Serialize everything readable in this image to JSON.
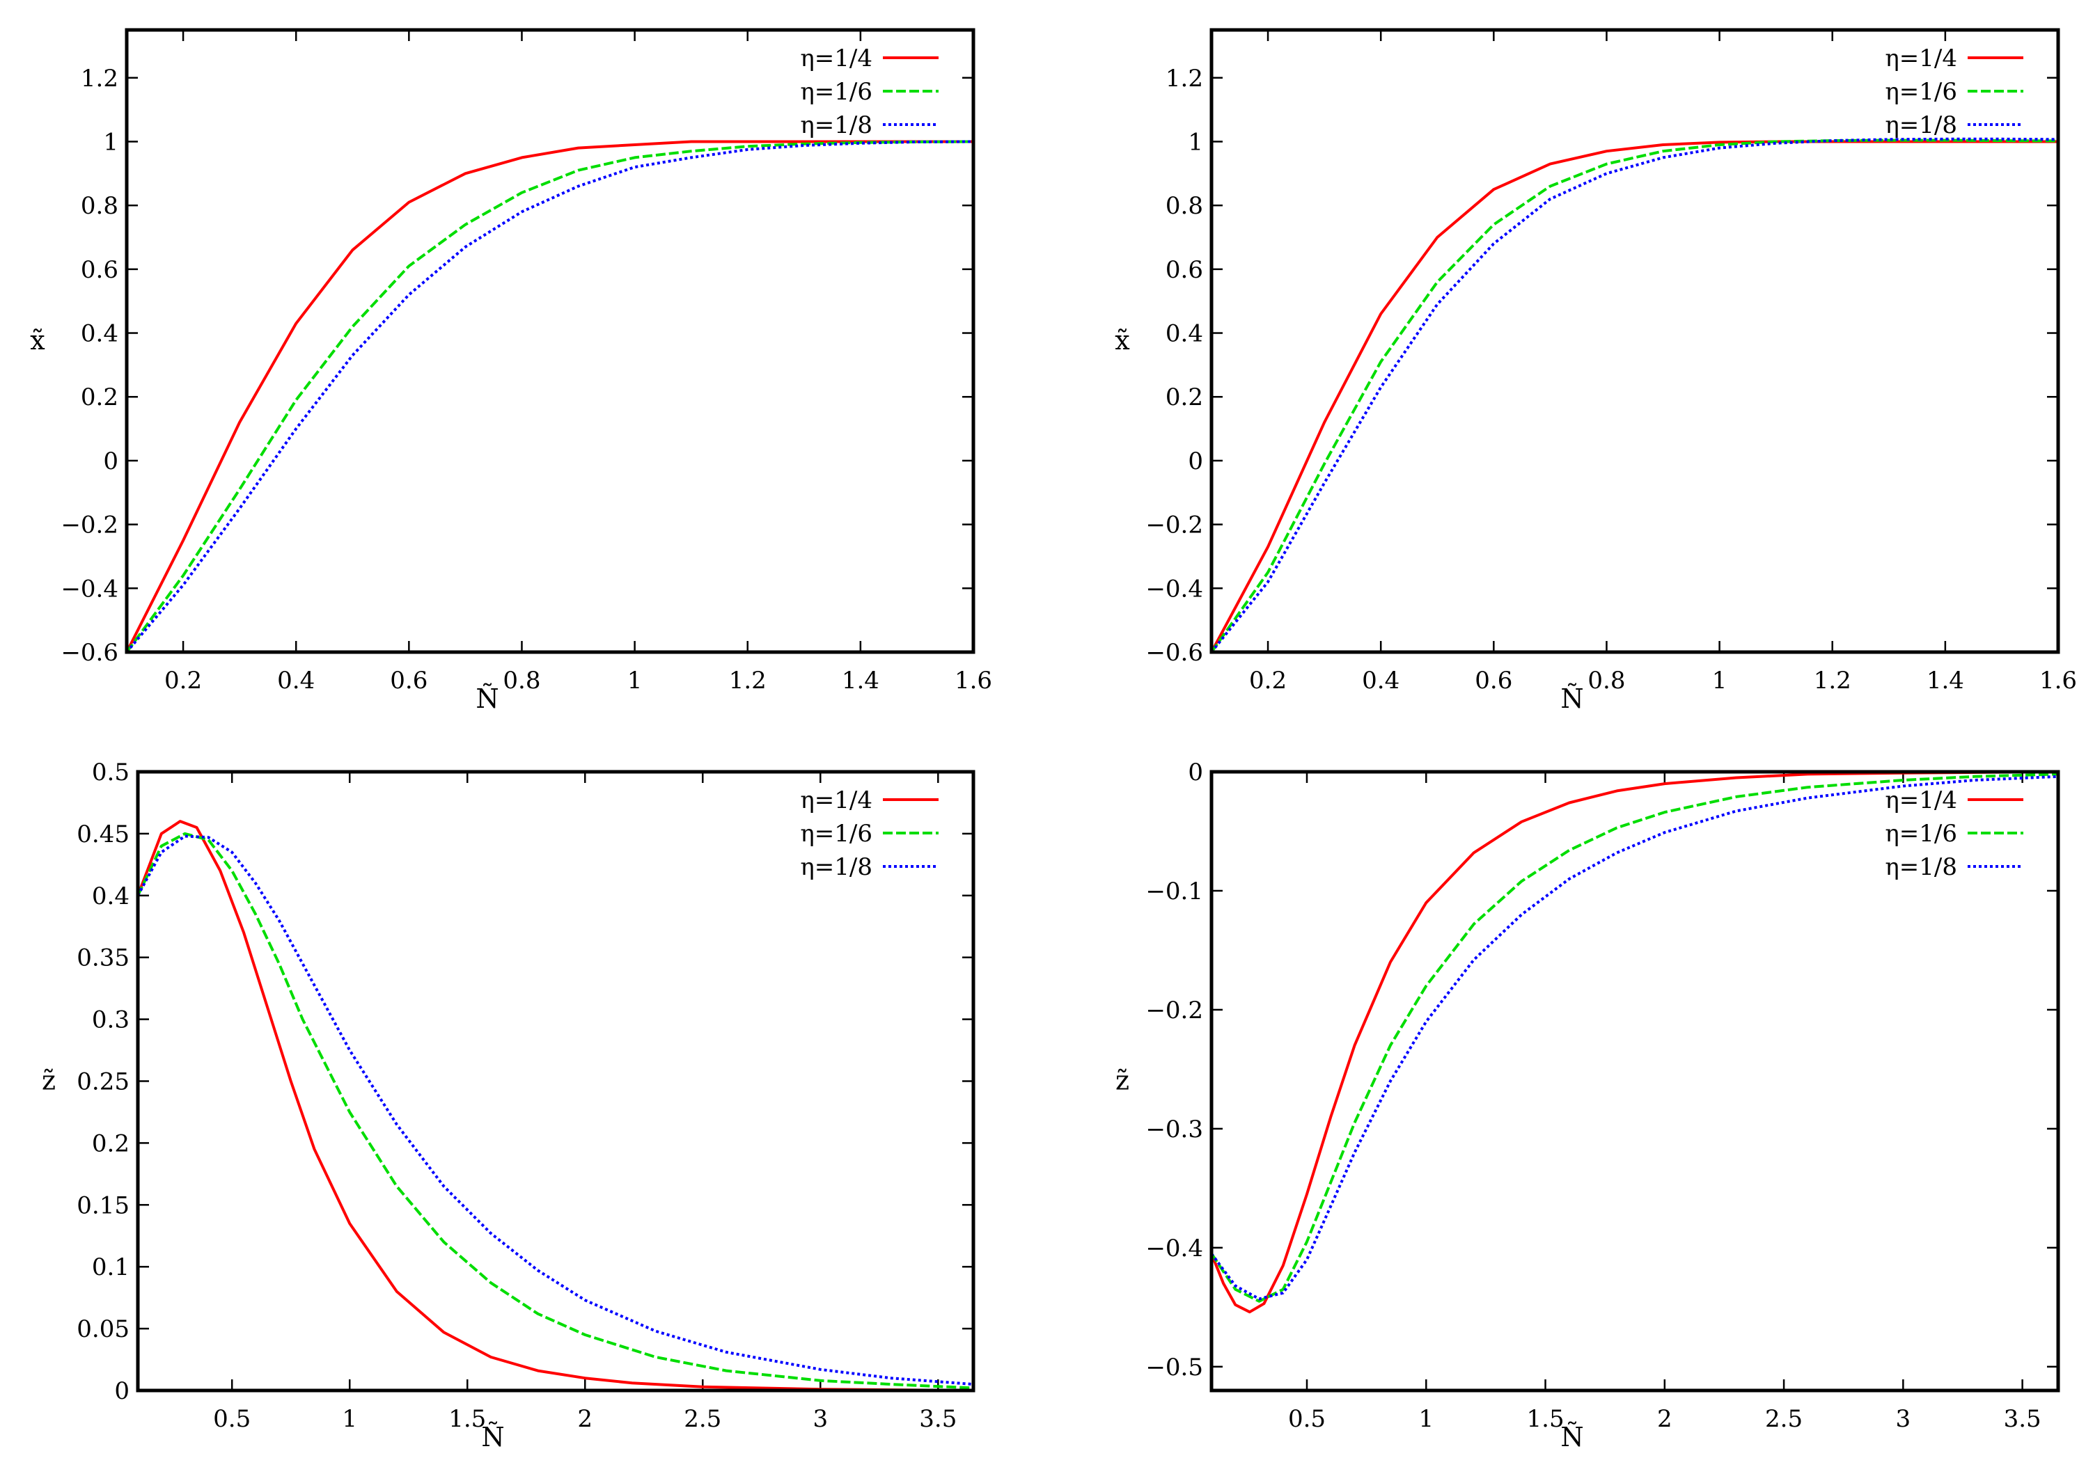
{
  "chart_data": [
    {
      "type": "line",
      "panel": "top-left",
      "xlabel": "Ñ",
      "ylabel": "x̃",
      "xlim": [
        0.1,
        1.6
      ],
      "ylim": [
        -0.6,
        1.35
      ],
      "xticks": [
        0.2,
        0.4,
        0.6,
        0.8,
        1,
        1.2,
        1.4,
        1.6
      ],
      "xtick_labels": [
        "0.2",
        "0.4",
        "0.6",
        "0.8",
        "1",
        "1.2",
        "1.4",
        "1.6"
      ],
      "yticks": [
        -0.6,
        -0.4,
        -0.2,
        0,
        0.2,
        0.4,
        0.6,
        0.8,
        1,
        1.2
      ],
      "ytick_labels": [
        "−0.6",
        "−0.4",
        "−0.2",
        "0",
        "0.2",
        "0.4",
        "0.6",
        "0.8",
        "1",
        "1.2"
      ],
      "legend_position": "top-right",
      "series": [
        {
          "name": "η=1/4",
          "color": "#ff0000",
          "style": "solid",
          "x": [
            0.1,
            0.2,
            0.3,
            0.4,
            0.5,
            0.6,
            0.7,
            0.8,
            0.9,
            1.0,
            1.1,
            1.2,
            1.3,
            1.4,
            1.5,
            1.6
          ],
          "y": [
            -0.6,
            -0.25,
            0.12,
            0.43,
            0.66,
            0.81,
            0.9,
            0.95,
            0.98,
            0.99,
            1.0,
            1.0,
            1.0,
            1.0,
            1.0,
            1.0
          ]
        },
        {
          "name": "η=1/6",
          "color": "#00dd00",
          "style": "dashed",
          "x": [
            0.1,
            0.2,
            0.3,
            0.4,
            0.5,
            0.6,
            0.7,
            0.8,
            0.9,
            1.0,
            1.1,
            1.2,
            1.3,
            1.4,
            1.5,
            1.6
          ],
          "y": [
            -0.6,
            -0.36,
            -0.09,
            0.19,
            0.42,
            0.61,
            0.74,
            0.84,
            0.91,
            0.95,
            0.97,
            0.985,
            0.993,
            0.997,
            0.999,
            1.0
          ]
        },
        {
          "name": "η=1/8",
          "color": "#0000ff",
          "style": "dotted",
          "x": [
            0.1,
            0.2,
            0.3,
            0.4,
            0.5,
            0.6,
            0.7,
            0.8,
            0.9,
            1.0,
            1.1,
            1.2,
            1.3,
            1.4,
            1.5,
            1.6
          ],
          "y": [
            -0.6,
            -0.39,
            -0.15,
            0.1,
            0.33,
            0.52,
            0.67,
            0.78,
            0.86,
            0.92,
            0.95,
            0.975,
            0.988,
            0.995,
            0.999,
            1.0
          ]
        }
      ]
    },
    {
      "type": "line",
      "panel": "top-right",
      "xlabel": "Ñ",
      "ylabel": "x̃",
      "xlim": [
        0.1,
        1.6
      ],
      "ylim": [
        -0.6,
        1.35
      ],
      "xticks": [
        0.2,
        0.4,
        0.6,
        0.8,
        1,
        1.2,
        1.4,
        1.6
      ],
      "xtick_labels": [
        "0.2",
        "0.4",
        "0.6",
        "0.8",
        "1",
        "1.2",
        "1.4",
        "1.6"
      ],
      "yticks": [
        -0.6,
        -0.4,
        -0.2,
        0,
        0.2,
        0.4,
        0.6,
        0.8,
        1,
        1.2
      ],
      "ytick_labels": [
        "−0.6",
        "−0.4",
        "−0.2",
        "0",
        "0.2",
        "0.4",
        "0.6",
        "0.8",
        "1",
        "1.2"
      ],
      "legend_position": "top-right",
      "series": [
        {
          "name": "η=1/4",
          "color": "#ff0000",
          "style": "solid",
          "x": [
            0.1,
            0.2,
            0.3,
            0.4,
            0.5,
            0.6,
            0.7,
            0.8,
            0.9,
            1.0,
            1.1,
            1.2,
            1.3,
            1.4,
            1.5,
            1.6
          ],
          "y": [
            -0.6,
            -0.27,
            0.12,
            0.46,
            0.7,
            0.85,
            0.93,
            0.97,
            0.99,
            0.998,
            1.0,
            1.0,
            1.0,
            1.0,
            1.0,
            1.0
          ]
        },
        {
          "name": "η=1/6",
          "color": "#00dd00",
          "style": "dashed",
          "x": [
            0.1,
            0.2,
            0.3,
            0.4,
            0.5,
            0.6,
            0.7,
            0.8,
            0.9,
            1.0,
            1.1,
            1.2,
            1.3,
            1.4,
            1.5,
            1.6
          ],
          "y": [
            -0.6,
            -0.35,
            -0.01,
            0.31,
            0.56,
            0.74,
            0.86,
            0.93,
            0.97,
            0.99,
            1.0,
            1.003,
            1.004,
            1.004,
            1.003,
            1.002
          ]
        },
        {
          "name": "η=1/8",
          "color": "#0000ff",
          "style": "dotted",
          "x": [
            0.1,
            0.2,
            0.3,
            0.4,
            0.5,
            0.6,
            0.7,
            0.8,
            0.9,
            1.0,
            1.1,
            1.2,
            1.3,
            1.4,
            1.5,
            1.6
          ],
          "y": [
            -0.6,
            -0.38,
            -0.07,
            0.23,
            0.49,
            0.68,
            0.82,
            0.9,
            0.95,
            0.98,
            0.995,
            1.003,
            1.007,
            1.008,
            1.008,
            1.007
          ]
        }
      ]
    },
    {
      "type": "line",
      "panel": "bottom-left",
      "xlabel": "Ñ",
      "ylabel": "z̃",
      "xlim": [
        0.1,
        3.65
      ],
      "ylim": [
        0,
        0.5
      ],
      "xticks": [
        0.5,
        1,
        1.5,
        2,
        2.5,
        3,
        3.5
      ],
      "xtick_labels": [
        "0.5",
        "1",
        "1.5",
        "2",
        "2.5",
        "3",
        "3.5"
      ],
      "yticks": [
        0,
        0.05,
        0.1,
        0.15,
        0.2,
        0.25,
        0.3,
        0.35,
        0.4,
        0.45,
        0.5
      ],
      "ytick_labels": [
        "0",
        "0.05",
        "0.1",
        "0.15",
        "0.2",
        "0.25",
        "0.3",
        "0.35",
        "0.4",
        "0.45",
        "0.5"
      ],
      "legend_position": "top-right",
      "series": [
        {
          "name": "η=1/4",
          "color": "#ff0000",
          "style": "solid",
          "x": [
            0.1,
            0.2,
            0.28,
            0.35,
            0.45,
            0.55,
            0.65,
            0.75,
            0.85,
            1.0,
            1.2,
            1.4,
            1.6,
            1.8,
            2.0,
            2.2,
            2.5,
            3.0,
            3.65
          ],
          "y": [
            0.4,
            0.45,
            0.46,
            0.455,
            0.42,
            0.37,
            0.31,
            0.25,
            0.195,
            0.135,
            0.08,
            0.047,
            0.027,
            0.016,
            0.01,
            0.006,
            0.003,
            0.001,
            0.0
          ]
        },
        {
          "name": "η=1/6",
          "color": "#00dd00",
          "style": "dashed",
          "x": [
            0.1,
            0.2,
            0.3,
            0.4,
            0.5,
            0.6,
            0.7,
            0.8,
            1.0,
            1.2,
            1.4,
            1.6,
            1.8,
            2.0,
            2.3,
            2.6,
            3.0,
            3.3,
            3.65
          ],
          "y": [
            0.4,
            0.44,
            0.45,
            0.445,
            0.42,
            0.385,
            0.345,
            0.3,
            0.225,
            0.165,
            0.12,
            0.087,
            0.062,
            0.045,
            0.027,
            0.016,
            0.008,
            0.005,
            0.002
          ]
        },
        {
          "name": "η=1/8",
          "color": "#0000ff",
          "style": "dotted",
          "x": [
            0.1,
            0.2,
            0.3,
            0.4,
            0.5,
            0.6,
            0.7,
            0.8,
            1.0,
            1.2,
            1.4,
            1.6,
            1.8,
            2.0,
            2.3,
            2.6,
            3.0,
            3.3,
            3.65
          ],
          "y": [
            0.4,
            0.435,
            0.448,
            0.447,
            0.435,
            0.41,
            0.38,
            0.345,
            0.275,
            0.215,
            0.165,
            0.127,
            0.097,
            0.073,
            0.048,
            0.031,
            0.017,
            0.01,
            0.005
          ]
        }
      ]
    },
    {
      "type": "line",
      "panel": "bottom-right",
      "xlabel": "Ñ",
      "ylabel": "z̃",
      "xlim": [
        0.1,
        3.65
      ],
      "ylim": [
        -0.52,
        0
      ],
      "xticks": [
        0.5,
        1,
        1.5,
        2,
        2.5,
        3,
        3.5
      ],
      "xtick_labels": [
        "0.5",
        "1",
        "1.5",
        "2",
        "2.5",
        "3",
        "3.5"
      ],
      "yticks": [
        -0.5,
        -0.4,
        -0.3,
        -0.2,
        -0.1,
        0
      ],
      "ytick_labels": [
        "−0.5",
        "−0.4",
        "−0.3",
        "−0.2",
        "−0.1",
        "0"
      ],
      "legend_position": "top-right",
      "series": [
        {
          "name": "η=1/4",
          "color": "#ff0000",
          "style": "solid",
          "x": [
            0.1,
            0.15,
            0.2,
            0.26,
            0.32,
            0.4,
            0.5,
            0.6,
            0.7,
            0.85,
            1.0,
            1.2,
            1.4,
            1.6,
            1.8,
            2.0,
            2.3,
            2.6,
            3.0,
            3.65
          ],
          "y": [
            -0.405,
            -0.43,
            -0.448,
            -0.454,
            -0.447,
            -0.415,
            -0.355,
            -0.29,
            -0.23,
            -0.16,
            -0.11,
            -0.068,
            -0.042,
            -0.026,
            -0.016,
            -0.01,
            -0.005,
            -0.002,
            -0.001,
            0.0
          ]
        },
        {
          "name": "η=1/6",
          "color": "#00dd00",
          "style": "dashed",
          "x": [
            0.1,
            0.2,
            0.3,
            0.4,
            0.5,
            0.6,
            0.7,
            0.85,
            1.0,
            1.2,
            1.4,
            1.6,
            1.8,
            2.0,
            2.3,
            2.6,
            3.0,
            3.3,
            3.65
          ],
          "y": [
            -0.405,
            -0.435,
            -0.445,
            -0.435,
            -0.395,
            -0.345,
            -0.295,
            -0.23,
            -0.18,
            -0.128,
            -0.092,
            -0.066,
            -0.047,
            -0.034,
            -0.021,
            -0.013,
            -0.007,
            -0.004,
            -0.002
          ]
        },
        {
          "name": "η=1/8",
          "color": "#0000ff",
          "style": "dotted",
          "x": [
            0.1,
            0.2,
            0.3,
            0.4,
            0.5,
            0.6,
            0.7,
            0.85,
            1.0,
            1.2,
            1.4,
            1.6,
            1.8,
            2.0,
            2.3,
            2.6,
            3.0,
            3.3,
            3.65
          ],
          "y": [
            -0.405,
            -0.432,
            -0.443,
            -0.438,
            -0.41,
            -0.365,
            -0.32,
            -0.26,
            -0.21,
            -0.158,
            -0.12,
            -0.09,
            -0.068,
            -0.051,
            -0.033,
            -0.022,
            -0.012,
            -0.007,
            -0.004
          ]
        }
      ]
    }
  ]
}
